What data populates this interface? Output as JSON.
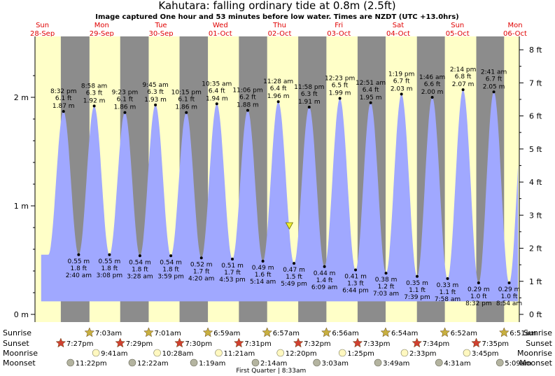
{
  "title": "Kahutara: falling  ordinary tide at 0.8m (2.5ft)",
  "subtitle": "Image captured One hour and 53 minutes before low water. Times are NZDT (UTC +13.0hrs)",
  "chart_data": {
    "type": "area",
    "title": "Kahutara: falling  ordinary tide at 0.8m (2.5ft)",
    "subtitle": "Image captured One hour and 53 minutes before low water. Times are NZDT (UTC +13.0hrs)",
    "ylabel_left_unit": "m",
    "ylabel_right_unit": "ft",
    "ylim_m": [
      0,
      2.2
    ],
    "y_ticks_m": [
      {
        "v": 0,
        "label": "0 m"
      },
      {
        "v": 1,
        "label": "1 m"
      },
      {
        "v": 2,
        "label": "2 m"
      }
    ],
    "y_ticks_ft": [
      {
        "v": 0,
        "label": "0 ft"
      },
      {
        "v": 1,
        "label": "1 ft"
      },
      {
        "v": 2,
        "label": "2 ft"
      },
      {
        "v": 3,
        "label": "3 ft"
      },
      {
        "v": 4,
        "label": "4 ft"
      },
      {
        "v": 5,
        "label": "5 ft"
      },
      {
        "v": 6,
        "label": "6 ft"
      },
      {
        "v": 7,
        "label": "7 ft"
      },
      {
        "v": 8,
        "label": "8 ft"
      }
    ],
    "days": [
      {
        "dow": "Sun",
        "date": "28-Sep"
      },
      {
        "dow": "Mon",
        "date": "29-Sep"
      },
      {
        "dow": "Tue",
        "date": "30-Sep"
      },
      {
        "dow": "Wed",
        "date": "01-Oct"
      },
      {
        "dow": "Thu",
        "date": "02-Oct"
      },
      {
        "dow": "Fri",
        "date": "03-Oct"
      },
      {
        "dow": "Sat",
        "date": "04-Oct"
      },
      {
        "dow": "Sun",
        "date": "05-Oct"
      },
      {
        "dow": "Mon",
        "date": "06-Oct"
      }
    ],
    "x_range": [
      "2025-09-28 09:00",
      "2025-10-06 13:00"
    ],
    "night_bands": [
      [
        "2025-09-28 19:27",
        "2025-09-29 07:03"
      ],
      [
        "2025-09-29 19:29",
        "2025-09-30 07:01"
      ],
      [
        "2025-09-30 19:30",
        "2025-10-01 06:59"
      ],
      [
        "2025-10-01 19:31",
        "2025-10-02 06:57"
      ],
      [
        "2025-10-02 19:32",
        "2025-10-03 06:56"
      ],
      [
        "2025-10-03 19:33",
        "2025-10-04 06:54"
      ],
      [
        "2025-10-04 19:34",
        "2025-10-05 06:52"
      ],
      [
        "2025-10-05 19:35",
        "2025-10-06 06:51"
      ]
    ],
    "tides": [
      {
        "type": "high",
        "time": "2025-09-28 20:32",
        "time_label": "8:32 pm",
        "ft": "6.1 ft",
        "m": 1.87,
        "m_label": "1.87 m"
      },
      {
        "type": "low",
        "time": "2025-09-29 02:40",
        "time_label": "2:40 am",
        "ft": "1.8 ft",
        "m": 0.55,
        "m_label": "0.55 m"
      },
      {
        "type": "high",
        "time": "2025-09-29 08:58",
        "time_label": "8:58 am",
        "ft": "6.3 ft",
        "m": 1.92,
        "m_label": "1.92 m"
      },
      {
        "type": "low",
        "time": "2025-09-29 15:08",
        "time_label": "3:08 pm",
        "ft": "1.8 ft",
        "m": 0.55,
        "m_label": "0.55 m"
      },
      {
        "type": "high",
        "time": "2025-09-29 21:23",
        "time_label": "9:23 pm",
        "ft": "6.1 ft",
        "m": 1.86,
        "m_label": "1.86 m"
      },
      {
        "type": "low",
        "time": "2025-09-30 03:28",
        "time_label": "3:28 am",
        "ft": "1.8 ft",
        "m": 0.54,
        "m_label": "0.54 m"
      },
      {
        "type": "high",
        "time": "2025-09-30 09:45",
        "time_label": "9:45 am",
        "ft": "6.3 ft",
        "m": 1.93,
        "m_label": "1.93 m"
      },
      {
        "type": "low",
        "time": "2025-09-30 15:59",
        "time_label": "3:59 pm",
        "ft": "1.8 ft",
        "m": 0.54,
        "m_label": "0.54 m"
      },
      {
        "type": "high",
        "time": "2025-09-30 22:15",
        "time_label": "10:15 pm",
        "ft": "6.1 ft",
        "m": 1.86,
        "m_label": "1.86 m"
      },
      {
        "type": "low",
        "time": "2025-10-01 04:20",
        "time_label": "4:20 am",
        "ft": "1.7 ft",
        "m": 0.52,
        "m_label": "0.52 m"
      },
      {
        "type": "high",
        "time": "2025-10-01 10:35",
        "time_label": "10:35 am",
        "ft": "6.4 ft",
        "m": 1.94,
        "m_label": "1.94 m"
      },
      {
        "type": "low",
        "time": "2025-10-01 16:53",
        "time_label": "4:53 pm",
        "ft": "1.7 ft",
        "m": 0.51,
        "m_label": "0.51 m"
      },
      {
        "type": "high",
        "time": "2025-10-01 23:06",
        "time_label": "11:06 pm",
        "ft": "6.2 ft",
        "m": 1.88,
        "m_label": "1.88 m"
      },
      {
        "type": "low",
        "time": "2025-10-02 05:14",
        "time_label": "5:14 am",
        "ft": "1.6 ft",
        "m": 0.49,
        "m_label": "0.49 m"
      },
      {
        "type": "high",
        "time": "2025-10-02 11:28",
        "time_label": "11:28 am",
        "ft": "6.4 ft",
        "m": 1.96,
        "m_label": "1.96 m"
      },
      {
        "type": "low",
        "time": "2025-10-02 17:49",
        "time_label": "5:49 pm",
        "ft": "1.5 ft",
        "m": 0.47,
        "m_label": "0.47 m"
      },
      {
        "type": "high",
        "time": "2025-10-02 23:58",
        "time_label": "11:58 pm",
        "ft": "6.3 ft",
        "m": 1.91,
        "m_label": "1.91 m"
      },
      {
        "type": "low",
        "time": "2025-10-03 06:09",
        "time_label": "6:09 am",
        "ft": "1.4 ft",
        "m": 0.44,
        "m_label": "0.44 m"
      },
      {
        "type": "high",
        "time": "2025-10-03 12:23",
        "time_label": "12:23 pm",
        "ft": "6.5 ft",
        "m": 1.99,
        "m_label": "1.99 m"
      },
      {
        "type": "low",
        "time": "2025-10-03 18:44",
        "time_label": "6:44 pm",
        "ft": "1.3 ft",
        "m": 0.41,
        "m_label": "0.41 m"
      },
      {
        "type": "high",
        "time": "2025-10-04 00:51",
        "time_label": "12:51 am",
        "ft": "6.4 ft",
        "m": 1.95,
        "m_label": "1.95 m"
      },
      {
        "type": "low",
        "time": "2025-10-04 07:03",
        "time_label": "7:03 am",
        "ft": "1.2 ft",
        "m": 0.38,
        "m_label": "0.38 m"
      },
      {
        "type": "high",
        "time": "2025-10-04 13:19",
        "time_label": "1:19 pm",
        "ft": "6.7 ft",
        "m": 2.03,
        "m_label": "2.03 m"
      },
      {
        "type": "low",
        "time": "2025-10-04 19:39",
        "time_label": "7:39 pm",
        "ft": "1.1 ft",
        "m": 0.35,
        "m_label": "0.35 m"
      },
      {
        "type": "high",
        "time": "2025-10-05 01:46",
        "time_label": "1:46 am",
        "ft": "6.6 ft",
        "m": 2.0,
        "m_label": "2.00 m"
      },
      {
        "type": "low",
        "time": "2025-10-05 07:58",
        "time_label": "7:58 am",
        "ft": "1.1 ft",
        "m": 0.33,
        "m_label": "0.33 m"
      },
      {
        "type": "high",
        "time": "2025-10-05 14:14",
        "time_label": "2:14 pm",
        "ft": "6.8 ft",
        "m": 2.07,
        "m_label": "2.07 m"
      },
      {
        "type": "low",
        "time": "2025-10-05 20:32",
        "time_label": "8:32 pm",
        "ft": "1.0 ft",
        "m": 0.29,
        "m_label": "0.29 m"
      },
      {
        "type": "high",
        "time": "2025-10-06 02:41",
        "time_label": "2:41 am",
        "ft": "6.7 ft",
        "m": 2.05,
        "m_label": "2.05 m"
      },
      {
        "type": "low",
        "time": "2025-10-06 08:54",
        "time_label": "8:54 am",
        "ft": "1.0 ft",
        "m": 0.29,
        "m_label": "0.29 m"
      }
    ],
    "now_marker": {
      "time": "2025-10-02 15:56",
      "m": 0.8
    },
    "almanac": {
      "row_labels": {
        "sunrise": "Sunrise",
        "sunset": "Sunset",
        "moonrise": "Moonrise",
        "moonset": "Moonset"
      },
      "sunrise": [
        {
          "time": "2025-09-29 07:03",
          "label": "7:03am"
        },
        {
          "time": "2025-09-30 07:01",
          "label": "7:01am"
        },
        {
          "time": "2025-10-01 06:59",
          "label": "6:59am"
        },
        {
          "time": "2025-10-02 06:57",
          "label": "6:57am"
        },
        {
          "time": "2025-10-03 06:56",
          "label": "6:56am"
        },
        {
          "time": "2025-10-04 06:54",
          "label": "6:54am"
        },
        {
          "time": "2025-10-05 06:52",
          "label": "6:52am"
        },
        {
          "time": "2025-10-06 06:51",
          "label": "6:51am"
        }
      ],
      "sunset": [
        {
          "time": "2025-09-28 19:27",
          "label": "7:27pm"
        },
        {
          "time": "2025-09-29 19:29",
          "label": "7:29pm"
        },
        {
          "time": "2025-09-30 19:30",
          "label": "7:30pm"
        },
        {
          "time": "2025-10-01 19:31",
          "label": "7:31pm"
        },
        {
          "time": "2025-10-02 19:32",
          "label": "7:32pm"
        },
        {
          "time": "2025-10-03 19:33",
          "label": "7:33pm"
        },
        {
          "time": "2025-10-04 19:34",
          "label": "7:34pm"
        },
        {
          "time": "2025-10-05 19:35",
          "label": "7:35pm"
        }
      ],
      "moonrise": [
        {
          "time": "2025-09-29 09:41",
          "label": "9:41am"
        },
        {
          "time": "2025-09-30 10:28",
          "label": "10:28am"
        },
        {
          "time": "2025-10-01 11:21",
          "label": "11:21am"
        },
        {
          "time": "2025-10-02 12:20",
          "label": "12:20pm"
        },
        {
          "time": "2025-10-03 13:25",
          "label": "1:25pm"
        },
        {
          "time": "2025-10-04 14:33",
          "label": "2:33pm"
        },
        {
          "time": "2025-10-05 15:45",
          "label": "3:45pm"
        }
      ],
      "moonset": [
        {
          "time": "2025-09-28 23:22",
          "label": "11:22pm"
        },
        {
          "time": "2025-09-30 00:22",
          "label": "12:22am"
        },
        {
          "time": "2025-10-01 01:19",
          "label": "1:19am"
        },
        {
          "time": "2025-10-02 02:14",
          "label": "2:14am"
        },
        {
          "time": "2025-10-03 03:03",
          "label": "3:03am"
        },
        {
          "time": "2025-10-04 03:49",
          "label": "3:49am"
        },
        {
          "time": "2025-10-05 04:31",
          "label": "4:31am"
        },
        {
          "time": "2025-10-06 05:09",
          "label": "5:09am"
        }
      ],
      "moon_phase": {
        "time": "2025-10-02 08:33",
        "label": "First Quarter | 8:33am"
      }
    },
    "colors": {
      "day": "#ffffc8",
      "night": "#8c8c8c",
      "water": "#a0a8ff",
      "day_label": "#e00000",
      "sun_star": "#c8b040",
      "set_star": "#d04030",
      "moonrise": "#fff8c0",
      "moonset": "#b4b4a0"
    }
  }
}
